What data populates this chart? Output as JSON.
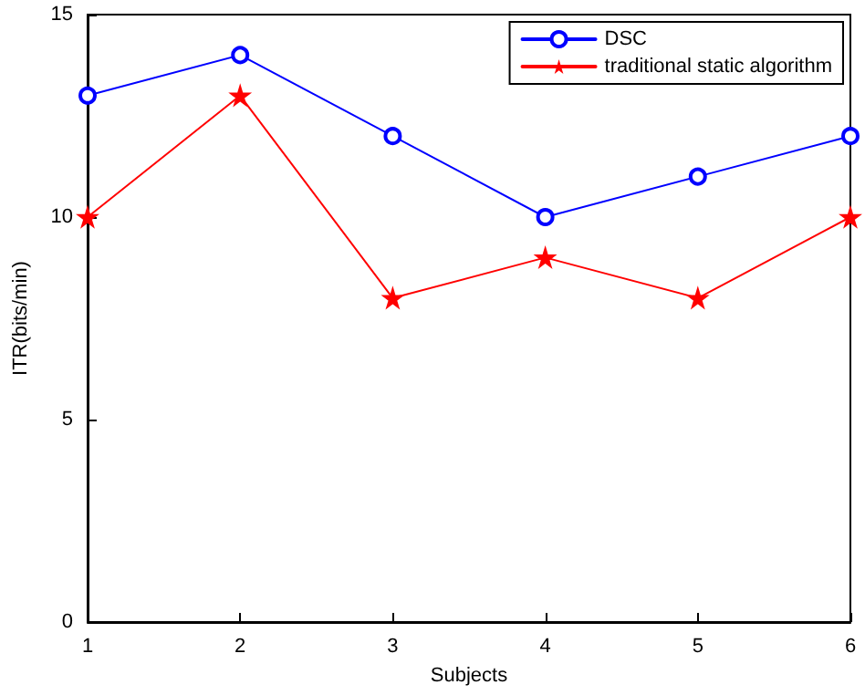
{
  "chart_data": {
    "type": "line",
    "xlabel": "Subjects",
    "ylabel": "ITR(bits/min)",
    "x": [
      1,
      2,
      3,
      4,
      5,
      6
    ],
    "series": [
      {
        "name": "DSC",
        "color": "#0000ff",
        "values": [
          13,
          14,
          12,
          10,
          11,
          12
        ],
        "marker": "circle"
      },
      {
        "name": "traditional static algorithm",
        "color": "#ff0000",
        "values": [
          10,
          13,
          8,
          9,
          8,
          10
        ],
        "marker": "star"
      }
    ],
    "xlim": [
      1,
      6
    ],
    "xticks": [
      1,
      2,
      3,
      4,
      5,
      6
    ],
    "ylim": [
      0,
      15
    ],
    "yticks": [
      0,
      5,
      10,
      15
    ],
    "grid": false,
    "legend": "top right",
    "line_style": "solid"
  }
}
